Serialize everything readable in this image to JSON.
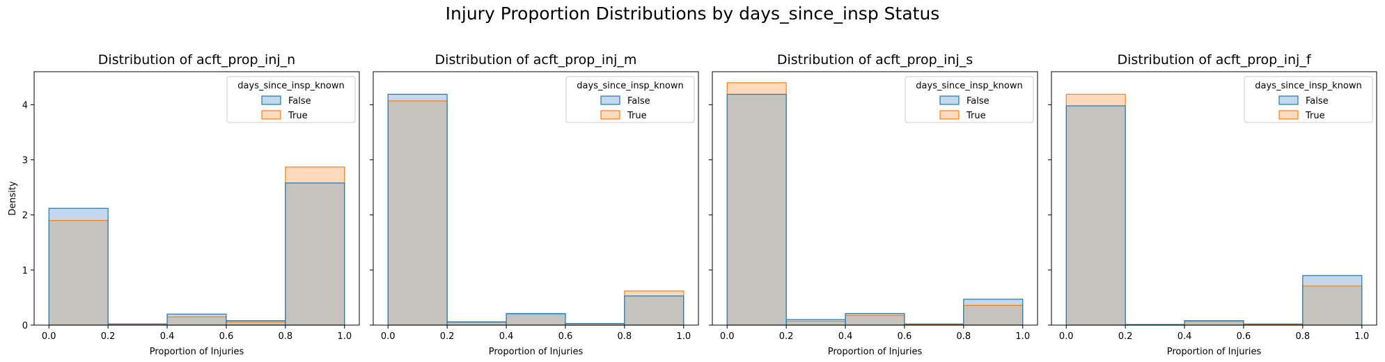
{
  "suptitle": "Injury Proportion Distributions by days_since_insp Status",
  "shared": {
    "xlabel": "Proportion of Injuries",
    "ylabel": "Density",
    "xticks": [
      0.0,
      0.2,
      0.4,
      0.6,
      0.8,
      1.0
    ],
    "xtick_labels": [
      "0.0",
      "0.2",
      "0.4",
      "0.6",
      "0.8",
      "1.0"
    ],
    "yticks": [
      0,
      1,
      2,
      3,
      4
    ],
    "ytick_labels": [
      "0",
      "1",
      "2",
      "3",
      "4"
    ],
    "xlim": [
      -0.05,
      1.05
    ],
    "ylim": [
      0,
      4.6
    ],
    "legend_title": "days_since_insp_known",
    "legend_placement": "upper right",
    "colors": {
      "False_fill": "#c3d8ec",
      "False_edge": "#1f77b4",
      "True_fill": "#ffd9bb",
      "True_edge": "#ff7f0e",
      "overlap_fill": "#c4c3bd"
    }
  },
  "chart_data": [
    {
      "type": "bar",
      "title": "Distribution of acft_prop_inj_n",
      "bin_edges": [
        0.0,
        0.2,
        0.4,
        0.6,
        0.8,
        1.0
      ],
      "series": [
        {
          "name": "False",
          "values": [
            2.12,
            0.02,
            0.2,
            0.08,
            2.58
          ]
        },
        {
          "name": "True",
          "values": [
            1.9,
            0.02,
            0.15,
            0.06,
            2.87
          ]
        }
      ]
    },
    {
      "type": "bar",
      "title": "Distribution of acft_prop_inj_m",
      "bin_edges": [
        0.0,
        0.2,
        0.4,
        0.6,
        0.8,
        1.0
      ],
      "series": [
        {
          "name": "False",
          "values": [
            4.19,
            0.06,
            0.21,
            0.03,
            0.53
          ]
        },
        {
          "name": "True",
          "values": [
            4.07,
            0.05,
            0.2,
            0.03,
            0.62
          ]
        }
      ]
    },
    {
      "type": "bar",
      "title": "Distribution of acft_prop_inj_s",
      "bin_edges": [
        0.0,
        0.2,
        0.4,
        0.6,
        0.8,
        1.0
      ],
      "series": [
        {
          "name": "False",
          "values": [
            4.19,
            0.1,
            0.21,
            0.02,
            0.47
          ]
        },
        {
          "name": "True",
          "values": [
            4.4,
            0.07,
            0.18,
            0.01,
            0.36
          ]
        }
      ]
    },
    {
      "type": "bar",
      "title": "Distribution of acft_prop_inj_f",
      "bin_edges": [
        0.0,
        0.2,
        0.4,
        0.6,
        0.8,
        1.0
      ],
      "series": [
        {
          "name": "False",
          "values": [
            3.98,
            0.01,
            0.08,
            0.02,
            0.9
          ]
        },
        {
          "name": "True",
          "values": [
            4.19,
            0.01,
            0.07,
            0.01,
            0.71
          ]
        }
      ]
    }
  ]
}
